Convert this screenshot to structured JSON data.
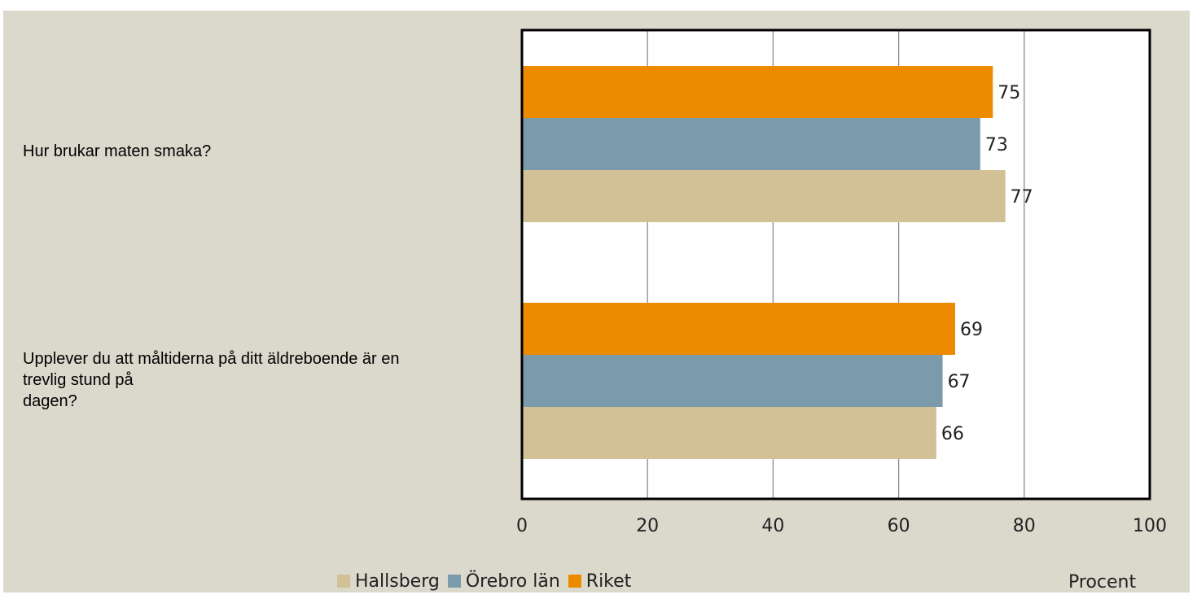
{
  "chart_data": {
    "type": "bar",
    "orientation": "horizontal",
    "title": "",
    "xlabel": "Procent",
    "ylabel": "",
    "xlim": [
      0,
      100
    ],
    "xticks": [
      "0",
      "20",
      "40",
      "60",
      "80",
      "100"
    ],
    "grid": true,
    "legend_position": "bottom",
    "categories": [
      "Hur brukar maten smaka?",
      "Upplever du att måltiderna på ditt äldreboende är en\ntrevlig stund på\ndagen?"
    ],
    "series": [
      {
        "name": "Riket",
        "color": "#ec8a00",
        "values": [
          75,
          69
        ]
      },
      {
        "name": "Örebro län",
        "color": "#7b9aab",
        "values": [
          73,
          67
        ]
      },
      {
        "name": "Hallsberg",
        "color": "#d2c097",
        "values": [
          77,
          66
        ]
      }
    ],
    "legend_order": [
      "Hallsberg",
      "Örebro län",
      "Riket"
    ]
  }
}
